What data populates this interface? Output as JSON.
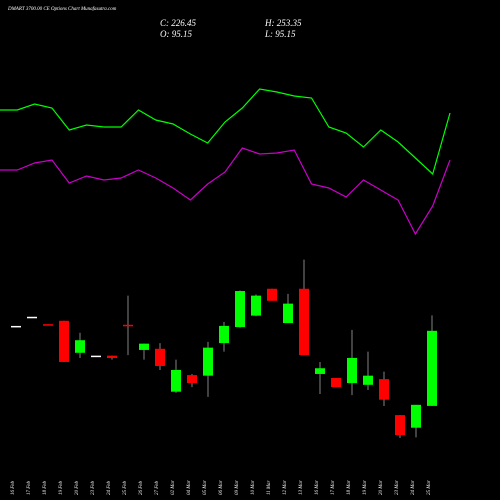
{
  "chart_data": {
    "type": "candlestick",
    "title": "DMART 3700.00 CE Options Chart Munafasutra.com",
    "close_text": "C: 226.45",
    "high_text": "H: 253.35",
    "open_text": "O: 95.15",
    "low_text": "L: 95.15",
    "categories": [
      "16 Feb",
      "17 Feb",
      "18 Feb",
      "19 Feb",
      "20 Feb",
      "23 Feb",
      "24 Feb",
      "25 Feb",
      "26 Feb",
      "27 Feb",
      "02 Mar",
      "04 Mar",
      "05 Mar",
      "06 Mar",
      "09 Mar",
      "10 Mar",
      "11 Mar",
      "12 Mar",
      "13 Mar",
      "16 Mar",
      "17 Mar",
      "18 Mar",
      "19 Mar",
      "20 Mar",
      "23 Mar",
      "24 Mar",
      "25 Mar"
    ],
    "open": [
      235,
      251,
      238,
      244,
      188,
      183,
      183,
      237,
      193,
      195,
      120,
      149,
      148,
      205,
      233,
      253,
      300,
      240,
      300,
      151,
      144,
      135,
      132,
      142,
      79,
      57,
      95.15
    ],
    "high": [
      235,
      251,
      238,
      244,
      223,
      183,
      183,
      288,
      204,
      205,
      176,
      151,
      207,
      242,
      297,
      290,
      300,
      291,
      351,
      172,
      144,
      228,
      190,
      155,
      79,
      97,
      253.35
    ],
    "low": [
      235,
      251,
      237,
      172,
      179,
      183,
      176,
      184,
      176,
      158,
      118,
      128,
      111,
      190,
      232,
      252,
      279,
      240,
      184,
      116,
      128,
      114,
      123,
      95,
      39,
      40,
      95.15
    ],
    "close": [
      235,
      251,
      237,
      172,
      210,
      183,
      179,
      236,
      204,
      165,
      158,
      135,
      197,
      235,
      296,
      288,
      279,
      274,
      184,
      161,
      128,
      179,
      148,
      106,
      44,
      97,
      226.45
    ],
    "up_color": "#00ff00",
    "down_color": "#ff0000",
    "ylim": [
      32,
      422
    ],
    "series": [
      {
        "color": "#00ff00",
        "values": [
          390,
          390,
          396,
          392,
          370,
          375,
          373,
          373,
          390,
          380,
          376,
          366,
          357,
          378,
          392,
          411,
          408,
          404,
          402,
          373,
          367,
          353,
          370,
          358,
          342,
          326,
          387
        ]
      },
      {
        "color": "#cc00cc",
        "values": [
          330,
          330,
          337,
          340,
          317,
          324,
          320,
          322,
          330,
          322,
          312,
          300,
          316,
          328,
          352,
          346,
          347,
          350,
          316,
          312,
          303,
          320,
          310,
          300,
          266,
          294,
          340
        ]
      }
    ],
    "y2lim": [
      250,
      440
    ]
  }
}
